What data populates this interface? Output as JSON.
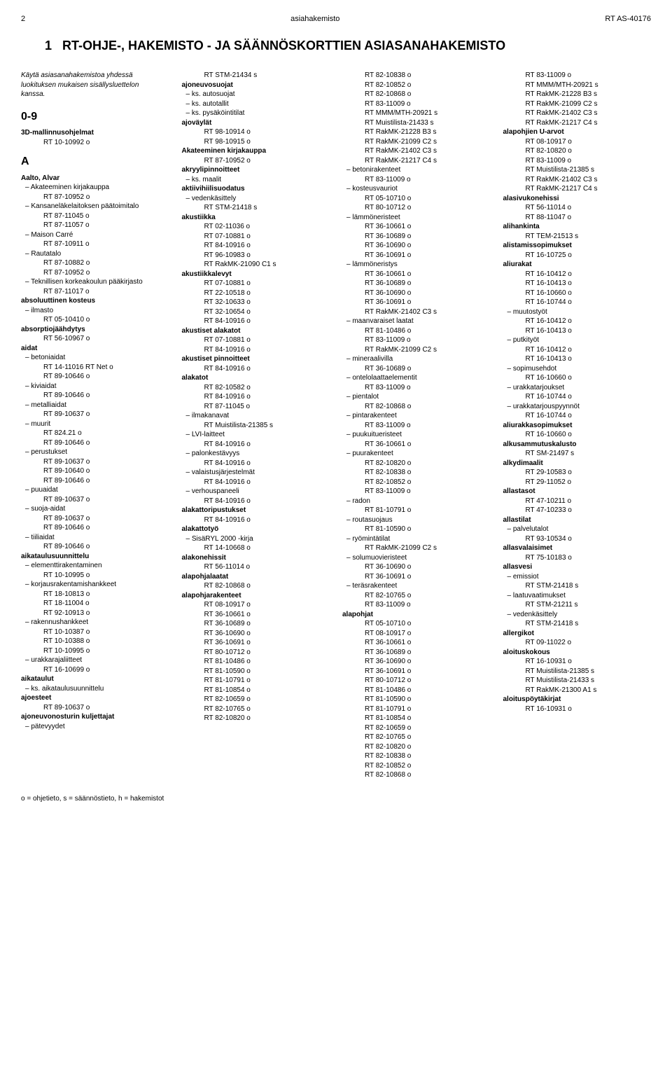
{
  "header": {
    "page_number": "2",
    "center": "asiahakemisto",
    "right": "RT AS-40176"
  },
  "main_title_prefix": "1",
  "main_title": "RT-OHJE-, HAKEMISTO - JA SÄÄNNÖSKORTTIEN ASIASANAHAKEMISTO",
  "intro": "Käytä asiasanahakemistoa yhdessä luokituksen mukaisen sisällysluettelon kanssa.",
  "footer": "o = ohjetieto, s = säännöstieto, h = hakemistot",
  "col1": {
    "sec09": "0-9",
    "item_3d": "3D-mallinnusohjelmat",
    "ref_3d": "RT 10-10992 o",
    "secA": "A",
    "aalto": "Aalto, Alvar",
    "aalto_s1": "Akateeminen kirjakauppa",
    "aalto_r1": "RT 87-10952 o",
    "aalto_s2": "Kansaneläkelaitoksen päätoimitalo",
    "aalto_r2a": "RT 87-11045 o",
    "aalto_r2b": "RT 87-11057 o",
    "aalto_s3": "Maison Carré",
    "aalto_r3": "RT 87-10911 o",
    "aalto_s4": "Rautatalo",
    "aalto_r4a": "RT 87-10882 o",
    "aalto_r4b": "RT 87-10952 o",
    "aalto_s5": "Teknillisen korkeakoulun pääkirjasto",
    "aalto_r5": "RT 87-11017 o",
    "abs_kost": "absoluuttinen kosteus",
    "abs_kost_s1": "ilmasto",
    "abs_kost_r1": "RT 05-10410 o",
    "absorptio": "absorptiojäähdytys",
    "absorptio_r1": "RT 56-10967 o",
    "aidat": "aidat",
    "aidat_s1": "betoniaidat",
    "aidat_r1a": "RT 14-11016 RT Net o",
    "aidat_r1b": "RT 89-10646 o",
    "aidat_s2": "kiviaidat",
    "aidat_r2": "RT 89-10646 o",
    "aidat_s3": "metalliaidat",
    "aidat_r3": "RT 89-10637 o",
    "aidat_s4": "muurit",
    "aidat_r4a": "RT 824.21 o",
    "aidat_r4b": "RT 89-10646 o",
    "aidat_s5": "perustukset",
    "aidat_r5a": "RT 89-10637 o",
    "aidat_r5b": "RT 89-10640 o",
    "aidat_r5c": "RT 89-10646 o",
    "aidat_s6": "puuaidat",
    "aidat_r6": "RT 89-10637 o",
    "aidat_s7": "suoja-aidat",
    "aidat_r7a": "RT 89-10637 o",
    "aidat_r7b": "RT 89-10646 o",
    "aidat_s8": "tiiliaidat",
    "aidat_r8": "RT 89-10646 o",
    "aikataulu": "aikataulusuunnittelu",
    "aikataulu_s1": "elementtirakentaminen",
    "aikataulu_r1": "RT 10-10995 o",
    "aikataulu_s2": "korjausrakentamishankkeet",
    "aikataulu_r2a": "RT 18-10813 o",
    "aikataulu_r2b": "RT 18-11004 o",
    "aikataulu_r2c": "RT 92-10913 o",
    "aikataulu_s3": "rakennushankkeet",
    "aikataulu_r3a": "RT 10-10387 o",
    "aikataulu_r3b": "RT 10-10388 o",
    "aikataulu_r3c": "RT 10-10995 o",
    "aikataulu_s4": "urakkarajaliitteet",
    "aikataulu_r4": "RT 16-10699 o",
    "aikataulut": "aikataulut",
    "aikataulut_s1": "ks. aikataulusuunnittelu",
    "ajoesteet": "ajoesteet",
    "ajoesteet_r1": "RT 89-10637 o",
    "ajoneuvo": "ajoneuvonosturin kuljettajat",
    "ajoneuvo_s1": "pätevyydet"
  },
  "col2": {
    "ref_top": "RT STM-21434 s",
    "ajoneuvosuojat": "ajoneuvosuojat",
    "ajoneuvosuojat_s1": "ks. autosuojat",
    "ajoneuvosuojat_s2": "ks. autotallit",
    "ajoneuvosuojat_s3": "ks. pysäköintitilat",
    "ajovaylat": "ajoväylät",
    "ajovaylat_r1": "RT 98-10914 o",
    "ajovaylat_r2": "RT 98-10915 o",
    "akateeminen": "Akateeminen kirjakauppa",
    "akateeminen_r1": "RT 87-10952 o",
    "akryyli": "akryylipinnoitteet",
    "akryyli_s1": "ks. maalit",
    "aktiivi": "aktiivihiilisuodatus",
    "aktiivi_s1": "vedenkäsittely",
    "aktiivi_r1": "RT STM-21418 s",
    "akustiikka": "akustiikka",
    "akustiikka_r1": "RT 02-11036 o",
    "akustiikka_r2": "RT 07-10881 o",
    "akustiikka_r3": "RT 84-10916 o",
    "akustiikka_r4": "RT 96-10983 o",
    "akustiikka_r5": "RT RakMK-21090 C1 s",
    "akustiikkalevyt": "akustiikkalevyt",
    "akustiikkalevyt_r1": "RT 07-10881 o",
    "akustiikkalevyt_r2": "RT 22-10518 o",
    "akustiikkalevyt_r3": "RT 32-10633 o",
    "akustiikkalevyt_r4": "RT 32-10654 o",
    "akustiikkalevyt_r5": "RT 84-10916 o",
    "akustiset_al": "akustiset alakatot",
    "akustiset_al_r1": "RT 07-10881 o",
    "akustiset_al_r2": "RT 84-10916 o",
    "akustiset_pin": "akustiset pinnoitteet",
    "akustiset_pin_r1": "RT 84-10916 o",
    "alakatot": "alakatot",
    "alakatot_r1": "RT 82-10582 o",
    "alakatot_r2": "RT 84-10916 o",
    "alakatot_r3": "RT 87-11045 o",
    "alakatot_s1": "ilmakanavat",
    "alakatot_s1r": "RT Muistilista-21385 s",
    "alakatot_s2": "LVI-laitteet",
    "alakatot_s2r": "RT 84-10916 o",
    "alakatot_s3": "palonkestävyys",
    "alakatot_s3r": "RT 84-10916 o",
    "alakatot_s4": "valaistusjärjestelmät",
    "alakatot_s4r": "RT 84-10916 o",
    "alakatot_s5": "verhouspaneeli",
    "alakatot_s5r": "RT 84-10916 o",
    "alakattorip": "alakattoripustukset",
    "alakattorip_r1": "RT 84-10916 o",
    "alakattotyo": "alakattotyö",
    "alakattotyo_s1": "SisäRYL 2000 -kirja",
    "alakattotyo_r1": "RT 14-10668 o",
    "alakonehissit": "alakonehissit",
    "alakonehissit_r1": "RT 56-11014 o",
    "alapohjalaatat": "alapohjalaatat",
    "alapohjalaatat_r1": "RT 82-10868 o",
    "alapohjarak": "alapohjarakenteet",
    "alapohjarak_r1": "RT 08-10917 o",
    "alapohjarak_r2": "RT 36-10661 o",
    "alapohjarak_r3": "RT 36-10689 o",
    "alapohjarak_r4": "RT 36-10690 o",
    "alapohjarak_r5": "RT 36-10691 o",
    "alapohjarak_r6": "RT 80-10712 o",
    "alapohjarak_r7": "RT 81-10486 o",
    "alapohjarak_r8": "RT 81-10590 o",
    "alapohjarak_r9": "RT 81-10791 o",
    "alapohjarak_r10": "RT 81-10854 o",
    "alapohjarak_r11": "RT 82-10659 o",
    "alapohjarak_r12": "RT 82-10765 o",
    "alapohjarak_r13": "RT 82-10820 o"
  },
  "col3": {
    "top_r1": "RT 82-10838 o",
    "top_r2": "RT 82-10852 o",
    "top_r3": "RT 82-10868 o",
    "top_r4": "RT 83-11009 o",
    "top_r5": "RT MMM/MTH-20921 s",
    "top_r6": "RT Muistilista-21433 s",
    "top_r7": "RT RakMK-21228 B3 s",
    "top_r8": "RT RakMK-21099 C2 s",
    "top_r9": "RT RakMK-21402 C3 s",
    "top_r10": "RT RakMK-21217 C4 s",
    "betonirak": "betonirakenteet",
    "betonirak_r1": "RT 83-11009 o",
    "kosteusv": "kosteusvauriot",
    "kosteusv_r1": "RT 05-10710 o",
    "kosteusv_r2": "RT 80-10712 o",
    "lammoner": "lämmöneristeet",
    "lammoner_r1": "RT 36-10661 o",
    "lammoner_r2": "RT 36-10689 o",
    "lammoner_r3": "RT 36-10690 o",
    "lammoner_r4": "RT 36-10691 o",
    "lammonerys": "lämmöneristys",
    "lammonerys_r1": "RT 36-10661 o",
    "lammonerys_r2": "RT 36-10689 o",
    "lammonerys_r3": "RT 36-10690 o",
    "lammonerys_r4": "RT 36-10691 o",
    "lammonerys_r5": "RT RakMK-21402 C3 s",
    "maanvar": "maanvaraiset laatat",
    "maanvar_r1": "RT 81-10486 o",
    "maanvar_r2": "RT 83-11009 o",
    "maanvar_r3": "RT RakMK-21099 C2 s",
    "mineraali": "mineraalivilla",
    "mineraali_r1": "RT 36-10689 o",
    "ontelo": "ontelolaattaelementit",
    "ontelo_r1": "RT 83-11009 o",
    "pientalot": "pientalot",
    "pientalot_r1": "RT 82-10868 o",
    "pintarak": "pintarakenteet",
    "pintarak_r1": "RT 83-11009 o",
    "puukuitu": "puukuitueristeet",
    "puukuitu_r1": "RT 36-10661 o",
    "puurak": "puurakenteet",
    "puurak_r1": "RT 82-10820 o",
    "puurak_r2": "RT 82-10838 o",
    "puurak_r3": "RT 82-10852 o",
    "puurak_r4": "RT 83-11009 o",
    "radon": "radon",
    "radon_r1": "RT 81-10791 o",
    "routasuoj": "routasuojaus",
    "routasuoj_r1": "RT 81-10590 o",
    "ryomintat": "ryömintätilat",
    "ryomintat_r1": "RT RakMK-21099 C2 s",
    "solumuovi": "solumuovieristeet",
    "solumuovi_r1": "RT 36-10690 o",
    "solumuovi_r2": "RT 36-10691 o",
    "terasrak": "teräsrakenteet",
    "terasrak_r1": "RT 82-10765 o",
    "terasrak_r2": "RT 83-11009 o",
    "alapohjat": "alapohjat",
    "alapohjat_r1": "RT 05-10710 o",
    "alapohjat_r2": "RT 08-10917 o",
    "alapohjat_r3": "RT 36-10661 o",
    "alapohjat_r4": "RT 36-10689 o",
    "alapohjat_r5": "RT 36-10690 o",
    "alapohjat_r6": "RT 36-10691 o",
    "alapohjat_r7": "RT 80-10712 o",
    "alapohjat_r8": "RT 81-10486 o",
    "alapohjat_r9": "RT 81-10590 o",
    "alapohjat_r10": "RT 81-10791 o",
    "alapohjat_r11": "RT 81-10854 o",
    "alapohjat_r12": "RT 82-10659 o",
    "alapohjat_r13": "RT 82-10765 o",
    "alapohjat_r14": "RT 82-10820 o",
    "alapohjat_r15": "RT 82-10838 o",
    "alapohjat_r16": "RT 82-10852 o",
    "alapohjat_r17": "RT 82-10868 o"
  },
  "col4": {
    "top_r1": "RT 83-11009 o",
    "top_r2": "RT MMM/MTH-20921 s",
    "top_r3": "RT RakMK-21228 B3 s",
    "top_r4": "RT RakMK-21099 C2 s",
    "top_r5": "RT RakMK-21402 C3 s",
    "top_r6": "RT RakMK-21217 C4 s",
    "alapohjien": "alapohjien U-arvot",
    "alapohjien_r1": "RT 08-10917 o",
    "alapohjien_r2": "RT 82-10820 o",
    "alapohjien_r3": "RT 83-11009 o",
    "alapohjien_r4": "RT Muistilista-21385 s",
    "alapohjien_r5": "RT RakMK-21402 C3 s",
    "alapohjien_r6": "RT RakMK-21217 C4 s",
    "alasivuk": "alasivukonehissi",
    "alasivuk_r1": "RT 56-11014 o",
    "alasivuk_r2": "RT 88-11047 o",
    "alihankinta": "alihankinta",
    "alihankinta_r1": "RT TEM-21513 s",
    "alistamis": "alistamissopimukset",
    "alistamis_r1": "RT 16-10725 o",
    "aliurakat": "aliurakat",
    "aliurakat_r1": "RT 16-10412 o",
    "aliurakat_r2": "RT 16-10413 o",
    "aliurakat_r3": "RT 16-10660 o",
    "aliurakat_r4": "RT 16-10744 o",
    "aliurakat_s1": "muutostyöt",
    "aliurakat_s1r1": "RT 16-10412 o",
    "aliurakat_s1r2": "RT 16-10413 o",
    "aliurakat_s2": "putkityöt",
    "aliurakat_s2r1": "RT 16-10412 o",
    "aliurakat_s2r2": "RT 16-10413 o",
    "aliurakat_s3": "sopimusehdot",
    "aliurakat_s3r1": "RT 16-10660 o",
    "aliurakat_s4": "urakkatarjoukset",
    "aliurakat_s4r1": "RT 16-10744 o",
    "aliurakat_s5": "urakkatarjouspyynnöt",
    "aliurakat_s5r1": "RT 16-10744 o",
    "aliurakkaso": "aliurakkasopimukset",
    "aliurakkaso_r1": "RT 16-10660 o",
    "alkusammutus": "alkusammutuskalusto",
    "alkusammutus_r1": "RT SM-21497 s",
    "alkydimaalit": "alkydimaalit",
    "alkydimaalit_r1": "RT 29-10583 o",
    "alkydimaalit_r2": "RT 29-11052 o",
    "allastasot": "allastasot",
    "allastasot_r1": "RT 47-10211 o",
    "allastasot_r2": "RT 47-10233 o",
    "allastilat": "allastilat",
    "allastilat_s1": "palvelutalot",
    "allastilat_r1": "RT 93-10534 o",
    "allasvalaisimet": "allasvalaisimet",
    "allasvalaisimet_r1": "RT 75-10183 o",
    "allasvesi": "allasvesi",
    "allasvesi_s1": "emissiot",
    "allasvesi_s1r": "RT STM-21418 s",
    "allasvesi_s2": "laatuvaatimukset",
    "allasvesi_s2r": "RT STM-21211 s",
    "allasvesi_s3": "vedenkäsittely",
    "allasvesi_s3r": "RT STM-21418 s",
    "allergikot": "allergikot",
    "allergikot_r1": "RT 09-11022 o",
    "aloituskokous": "aloituskokous",
    "aloituskokous_r1": "RT 16-10931 o",
    "aloituskokous_r2": "RT Muistilista-21385 s",
    "aloituskokous_r3": "RT Muistilista-21433 s",
    "aloituskokous_r4": "RT RakMK-21300 A1 s",
    "aloituspoytak": "aloituspöytäkirjat",
    "aloituspoytak_r1": "RT 16-10931 o"
  }
}
